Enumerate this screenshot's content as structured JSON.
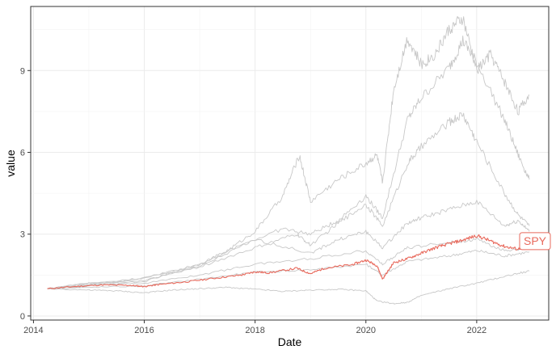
{
  "chart_data": {
    "type": "line",
    "xlabel": "Date",
    "ylabel": "value",
    "xlim": [
      2013.95,
      2023.3
    ],
    "ylim": [
      -0.15,
      11.35
    ],
    "x_ticks": [
      2014,
      2016,
      2018,
      2020,
      2022
    ],
    "x_tick_labels": [
      "2014",
      "2016",
      "2018",
      "2020",
      "2022"
    ],
    "y_ticks": [
      0,
      3,
      6,
      9
    ],
    "y_tick_labels": [
      "0",
      "3",
      "6",
      "9"
    ],
    "grid": true,
    "legend": "none",
    "colors": {
      "highlight": "#e8695c",
      "background_series": "#c8c8c8",
      "grid": "#ebebeb",
      "border": "#333333"
    },
    "highlight_label": "SPY",
    "series": [
      {
        "name": "SPY",
        "highlight": true,
        "x": [
          2014.25,
          2014.75,
          2015.25,
          2015.75,
          2016.0,
          2016.25,
          2016.75,
          2017.25,
          2017.75,
          2018.0,
          2018.25,
          2018.75,
          2019.0,
          2019.25,
          2019.75,
          2020.0,
          2020.2,
          2020.3,
          2020.5,
          2020.75,
          2021.0,
          2021.25,
          2021.5,
          2021.75,
          2022.0,
          2022.25,
          2022.5,
          2022.75,
          2022.95
        ],
        "values": [
          1.0,
          1.08,
          1.14,
          1.12,
          1.08,
          1.15,
          1.25,
          1.38,
          1.5,
          1.62,
          1.58,
          1.75,
          1.55,
          1.75,
          1.88,
          2.05,
          1.85,
          1.35,
          1.95,
          2.1,
          2.3,
          2.5,
          2.65,
          2.78,
          2.95,
          2.75,
          2.55,
          2.45,
          2.7
        ]
      },
      {
        "name": "",
        "x": [
          2014.25,
          2015.0,
          2016.0,
          2016.5,
          2017.0,
          2017.5,
          2018.0,
          2018.5,
          2018.8,
          2019.0,
          2019.5,
          2020.0,
          2020.2,
          2020.3,
          2020.5,
          2020.75,
          2021.0,
          2021.25,
          2021.5,
          2021.75,
          2022.0,
          2022.25,
          2022.5,
          2022.75,
          2022.95
        ],
        "values": [
          1.0,
          1.2,
          1.25,
          1.6,
          1.9,
          2.4,
          3.1,
          4.4,
          5.9,
          4.2,
          5.0,
          5.6,
          5.9,
          4.9,
          8.3,
          10.2,
          9.2,
          9.6,
          10.5,
          10.9,
          9.0,
          9.6,
          8.6,
          7.5,
          8.1
        ]
      },
      {
        "name": "",
        "x": [
          2014.25,
          2015.0,
          2016.0,
          2017.0,
          2017.75,
          2018.5,
          2019.0,
          2019.5,
          2020.0,
          2020.3,
          2020.75,
          2021.0,
          2021.5,
          2021.75,
          2022.0,
          2022.5,
          2022.75,
          2022.95
        ],
        "values": [
          1.0,
          1.15,
          1.4,
          1.9,
          2.6,
          3.2,
          3.0,
          3.5,
          4.4,
          3.6,
          7.2,
          8.0,
          9.1,
          10.1,
          9.3,
          7.2,
          5.9,
          5.0
        ]
      },
      {
        "name": "",
        "x": [
          2014.25,
          2015.0,
          2016.0,
          2017.0,
          2018.0,
          2018.75,
          2019.0,
          2019.5,
          2020.0,
          2020.3,
          2020.75,
          2021.0,
          2021.5,
          2021.75,
          2022.0,
          2022.5,
          2022.75,
          2022.95
        ],
        "values": [
          1.0,
          1.2,
          1.3,
          1.8,
          2.5,
          3.0,
          2.6,
          3.4,
          4.1,
          3.3,
          5.6,
          6.2,
          7.1,
          7.4,
          6.4,
          4.5,
          3.7,
          3.3
        ]
      },
      {
        "name": "",
        "x": [
          2014.25,
          2015.0,
          2016.0,
          2017.0,
          2018.0,
          2019.0,
          2019.5,
          2020.0,
          2020.3,
          2020.75,
          2021.0,
          2021.5,
          2022.0,
          2022.5,
          2022.75,
          2022.95
        ],
        "values": [
          1.0,
          1.1,
          1.4,
          1.8,
          2.8,
          2.3,
          2.8,
          3.1,
          2.5,
          3.4,
          3.6,
          3.9,
          4.2,
          3.3,
          3.5,
          3.1
        ]
      },
      {
        "name": "",
        "x": [
          2014.25,
          2015.0,
          2016.0,
          2017.0,
          2018.0,
          2019.0,
          2020.0,
          2020.3,
          2020.75,
          2021.5,
          2022.0,
          2022.5,
          2022.95
        ],
        "values": [
          1.0,
          1.15,
          1.2,
          1.5,
          1.9,
          2.1,
          2.4,
          1.9,
          2.5,
          2.7,
          2.8,
          2.4,
          2.5
        ]
      },
      {
        "name": "",
        "x": [
          2014.25,
          2015.0,
          2016.0,
          2017.0,
          2018.0,
          2019.0,
          2020.0,
          2020.3,
          2020.75,
          2021.5,
          2022.0,
          2022.5,
          2022.95
        ],
        "values": [
          1.0,
          1.05,
          1.1,
          1.35,
          1.6,
          1.7,
          1.9,
          1.5,
          2.0,
          2.2,
          2.4,
          2.2,
          2.35
        ]
      },
      {
        "name": "",
        "x": [
          2014.25,
          2015.0,
          2015.5,
          2016.0,
          2016.5,
          2017.0,
          2017.5,
          2018.0,
          2018.5,
          2019.0,
          2019.5,
          2020.0,
          2020.2,
          2020.5,
          2020.75,
          2021.0,
          2021.5,
          2022.0,
          2022.5,
          2022.95
        ],
        "values": [
          1.0,
          0.95,
          0.92,
          0.85,
          0.95,
          1.0,
          1.05,
          0.98,
          0.9,
          0.95,
          0.98,
          0.92,
          0.55,
          0.45,
          0.5,
          0.75,
          1.0,
          1.2,
          1.45,
          1.65
        ]
      }
    ]
  }
}
